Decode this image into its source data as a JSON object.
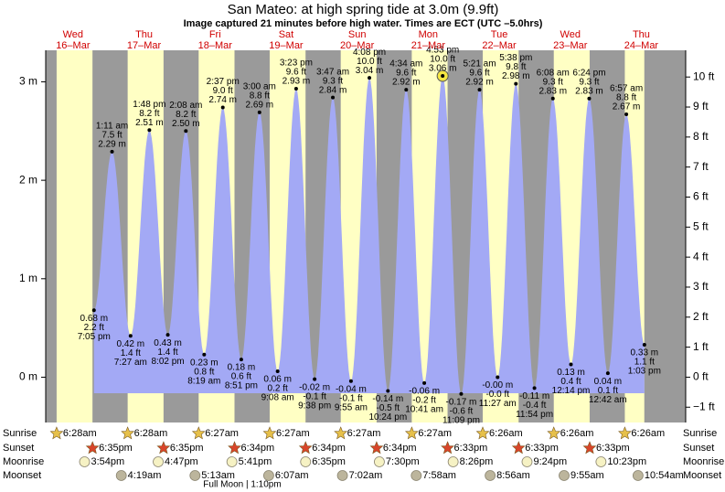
{
  "chart_data": {
    "type": "area",
    "title": "San Mateo: at high  spring tide at 3.0m (9.9ft)",
    "subtitle": "Image captured 21 minutes before high water. Times are ECT (UTC –5.0hrs)",
    "ylim": [
      -0.46,
      3.32
    ],
    "yticks": [
      {
        "value": 0,
        "label": "0 m"
      },
      {
        "value": 1,
        "label": "1 m"
      },
      {
        "value": 2,
        "label": "2 m"
      },
      {
        "value": 3,
        "label": "3 m"
      }
    ],
    "y2lim": [
      -1.51,
      10.89
    ],
    "y2ticks": [
      {
        "value": -1,
        "label": "−1 ft"
      },
      {
        "value": 0,
        "label": "0 ft"
      },
      {
        "value": 1,
        "label": "1 ft"
      },
      {
        "value": 2,
        "label": "2 ft"
      },
      {
        "value": 3,
        "label": "3 ft"
      },
      {
        "value": 4,
        "label": "4 ft"
      },
      {
        "value": 5,
        "label": "5 ft"
      },
      {
        "value": 6,
        "label": "6 ft"
      },
      {
        "value": 7,
        "label": "7 ft"
      },
      {
        "value": 8,
        "label": "8 ft"
      },
      {
        "value": 9,
        "label": "9 ft"
      },
      {
        "value": 10,
        "label": "10 ft"
      }
    ],
    "color": "#a3a9f5",
    "rows": {
      "sunrise": "Sunrise",
      "sunset": "Sunset",
      "moonrise": "Moonrise",
      "moonset": "Moonset"
    },
    "full_moon": "Full Moon | 1:10pm",
    "days": [
      {
        "dow": "Wed",
        "date": "16–Mar",
        "sunrise": "6:28am",
        "sunset": "6:35pm",
        "moonrise": "3:54pm",
        "tides": [
          {
            "time": "7:05 pm",
            "height": 0.68,
            "height_label": "0.68 m",
            "ft_label": "2.2 ft"
          }
        ]
      },
      {
        "dow": "Thu",
        "date": "17–Mar",
        "sunrise": "6:28am",
        "sunset": "6:35pm",
        "moonrise": "4:47pm",
        "moonset": "4:19am",
        "tides": [
          {
            "time": "1:11 am",
            "height": 2.29,
            "height_label": "2.29 m",
            "ft_label": "7.5 ft"
          },
          {
            "time": "7:27 am",
            "height": 0.42,
            "height_label": "0.42 m",
            "ft_label": "1.4 ft"
          },
          {
            "time": "1:48 pm",
            "height": 2.51,
            "height_label": "2.51 m",
            "ft_label": "8.2 ft"
          },
          {
            "time": "8:02 pm",
            "height": 0.43,
            "height_label": "0.43 m",
            "ft_label": "1.4 ft"
          }
        ]
      },
      {
        "dow": "Fri",
        "date": "18–Mar",
        "sunrise": "6:27am",
        "sunset": "6:34pm",
        "moonrise": "5:41pm",
        "moonset": "5:13am",
        "tides": [
          {
            "time": "2:08 am",
            "height": 2.5,
            "height_label": "2.50 m",
            "ft_label": "8.2 ft"
          },
          {
            "time": "8:19 am",
            "height": 0.23,
            "height_label": "0.23 m",
            "ft_label": "0.8 ft"
          },
          {
            "time": "2:37 pm",
            "height": 2.74,
            "height_label": "2.74 m",
            "ft_label": "9.0 ft"
          },
          {
            "time": "8:51 pm",
            "height": 0.18,
            "height_label": "0.18 m",
            "ft_label": "0.6 ft"
          }
        ]
      },
      {
        "dow": "Sat",
        "date": "19–Mar",
        "sunrise": "6:27am",
        "sunset": "6:34pm",
        "moonrise": "6:35pm",
        "moonset": "6:07am",
        "tides": [
          {
            "time": "3:00 am",
            "height": 2.69,
            "height_label": "2.69 m",
            "ft_label": "8.8 ft"
          },
          {
            "time": "9:08 am",
            "height": 0.06,
            "height_label": "0.06 m",
            "ft_label": "0.2 ft"
          },
          {
            "time": "3:23 pm",
            "height": 2.93,
            "height_label": "2.93 m",
            "ft_label": "9.6 ft"
          },
          {
            "time": "9:38 pm",
            "height": -0.02,
            "height_label": "-0.02 m",
            "ft_label": "-0.1 ft"
          }
        ]
      },
      {
        "dow": "Sun",
        "date": "20–Mar",
        "sunrise": "6:27am",
        "sunset": "6:34pm",
        "moonrise": "7:30pm",
        "moonset": "7:02am",
        "tides": [
          {
            "time": "3:47 am",
            "height": 2.84,
            "height_label": "2.84 m",
            "ft_label": "9.3 ft"
          },
          {
            "time": "9:55 am",
            "height": -0.04,
            "height_label": "-0.04 m",
            "ft_label": "-0.1 ft"
          },
          {
            "time": "4:08 pm",
            "height": 3.04,
            "height_label": "3.04 m",
            "ft_label": "10.0 ft"
          },
          {
            "time": "10:24 pm",
            "height": -0.14,
            "height_label": "-0.14 m",
            "ft_label": "-0.5 ft"
          }
        ]
      },
      {
        "dow": "Mon",
        "date": "21–Mar",
        "sunrise": "6:27am",
        "sunset": "6:33pm",
        "moonrise": "8:26pm",
        "moonset": "7:58am",
        "tides": [
          {
            "time": "4:34 am",
            "height": 2.92,
            "height_label": "2.92 m",
            "ft_label": "9.6 ft"
          },
          {
            "time": "10:41 am",
            "height": -0.06,
            "height_label": "-0.06 m",
            "ft_label": "-0.2 ft"
          },
          {
            "time": "4:53 pm",
            "height": 3.06,
            "height_label": "3.06 m",
            "ft_label": "10.0 ft"
          },
          {
            "time": "11:09 pm",
            "height": -0.17,
            "height_label": "-0.17 m",
            "ft_label": "-0.6 ft"
          }
        ]
      },
      {
        "dow": "Tue",
        "date": "22–Mar",
        "sunrise": "6:26am",
        "sunset": "6:33pm",
        "moonrise": "9:24pm",
        "moonset": "8:56am",
        "tides": [
          {
            "time": "5:21 am",
            "height": 2.92,
            "height_label": "2.92 m",
            "ft_label": "9.6 ft"
          },
          {
            "time": "11:27 am",
            "height": -0.0,
            "height_label": "-0.00 m",
            "ft_label": "-0.0 ft"
          },
          {
            "time": "5:38 pm",
            "height": 2.98,
            "height_label": "2.98 m",
            "ft_label": "9.8 ft"
          },
          {
            "time": "11:54 pm",
            "height": -0.11,
            "height_label": "-0.11 m",
            "ft_label": "-0.4 ft"
          }
        ]
      },
      {
        "dow": "Wed",
        "date": "23–Mar",
        "sunrise": "6:26am",
        "sunset": "6:33pm",
        "moonrise": "10:23pm",
        "moonset": "9:55am",
        "tides": [
          {
            "time": "6:08 am",
            "height": 2.83,
            "height_label": "2.83 m",
            "ft_label": "9.3 ft"
          },
          {
            "time": "12:14 pm",
            "height": 0.13,
            "height_label": "0.13 m",
            "ft_label": "0.4 ft"
          },
          {
            "time": "6:24 pm",
            "height": 2.83,
            "height_label": "2.83 m",
            "ft_label": "9.3 ft"
          }
        ]
      },
      {
        "dow": "Thu",
        "date": "24–Mar",
        "sunrise": "6:26am",
        "moonset": "10:54am",
        "tides": [
          {
            "time": "12:42 am",
            "height": 0.04,
            "height_label": "0.04 m",
            "ft_label": "0.1 ft"
          },
          {
            "time": "6:57 am",
            "height": 2.67,
            "height_label": "2.67 m",
            "ft_label": "8.8 ft"
          },
          {
            "time": "1:03 pm",
            "height": 0.33,
            "height_label": "0.33 m",
            "ft_label": "1.1 ft"
          }
        ]
      }
    ]
  }
}
